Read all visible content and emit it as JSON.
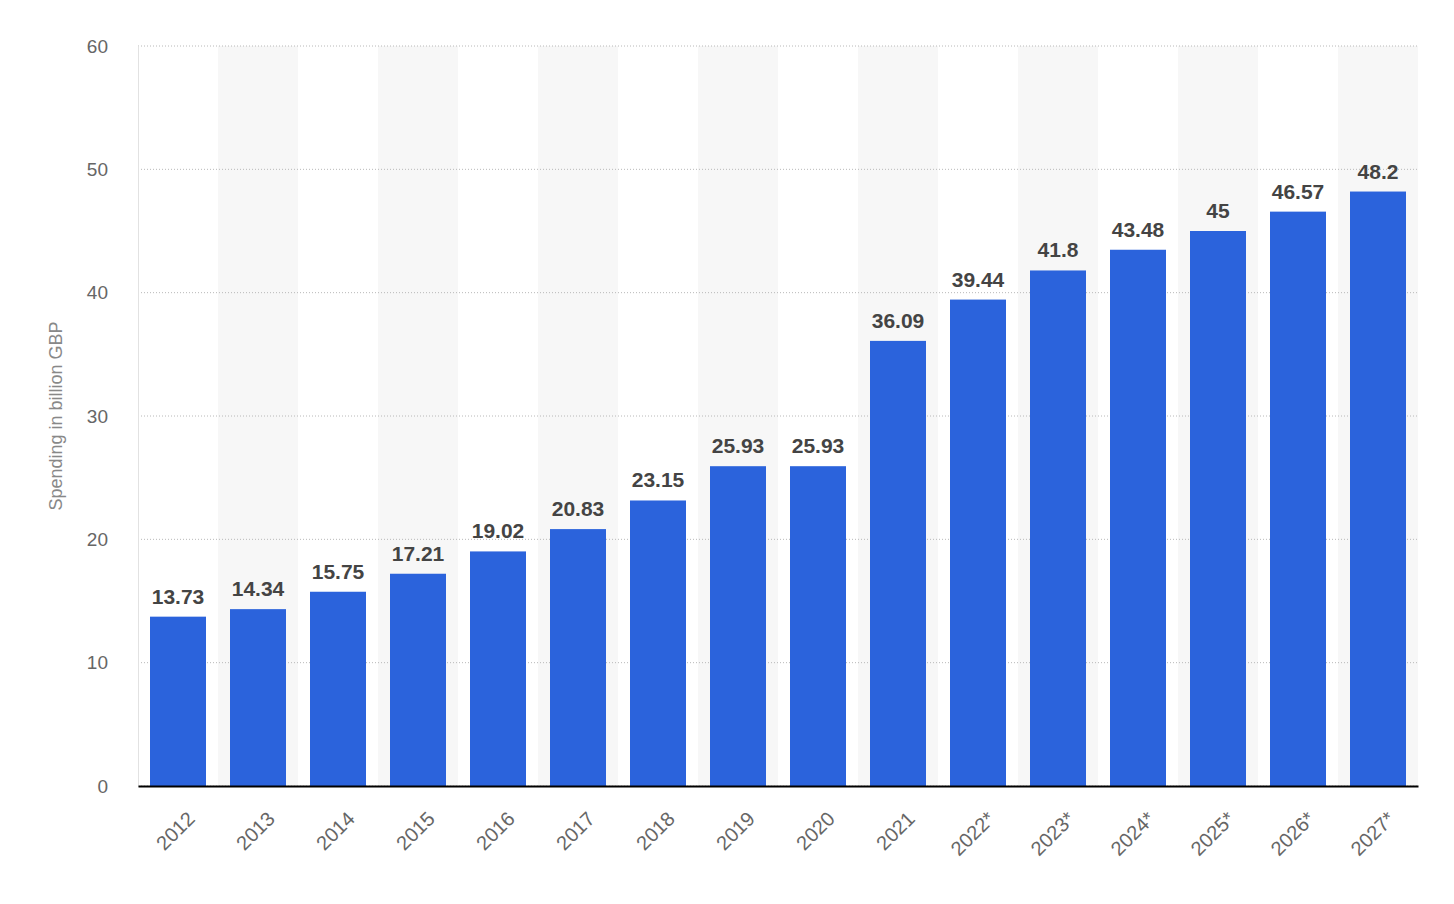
{
  "chart_data": {
    "type": "bar",
    "y_label": "Spending in billion GBP",
    "categories": [
      "2012",
      "2013",
      "2014",
      "2015",
      "2016",
      "2017",
      "2018",
      "2019",
      "2020",
      "2021",
      "2022*",
      "2023*",
      "2024*",
      "2025*",
      "2026*",
      "2027*"
    ],
    "values": [
      13.73,
      14.34,
      15.75,
      17.21,
      19.02,
      20.83,
      23.15,
      25.93,
      25.93,
      36.09,
      39.44,
      41.8,
      43.48,
      45,
      46.57,
      48.2
    ],
    "color": "#2b63dc",
    "ylim": [
      0,
      60
    ],
    "yticks": [
      0,
      10,
      20,
      30,
      40,
      50,
      60
    ],
    "grid": true,
    "data_labels": true
  }
}
